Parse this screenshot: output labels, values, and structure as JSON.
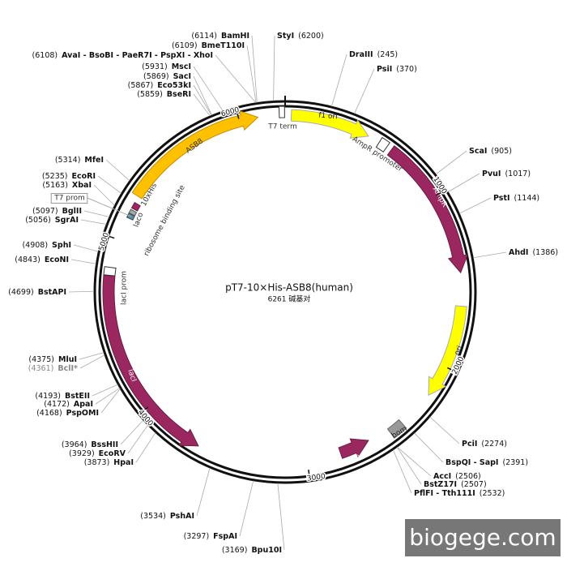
{
  "title": "pT7-10×His-ASB8(human)",
  "length_label": "6261 碱基对",
  "sites": [
    {
      "name": "BamHI",
      "pos": "(6114)"
    },
    {
      "name": "BmeT110I",
      "pos": "(6109)"
    },
    {
      "name": "AvaI - BsoBI - PaeR7I - PspXI - XhoI",
      "pos": "(6108)"
    },
    {
      "name": "MscI",
      "pos": "(5931)"
    },
    {
      "name": "SacI",
      "pos": "(5869)"
    },
    {
      "name": "Eco53kI",
      "pos": "(5867)"
    },
    {
      "name": "BseRI",
      "pos": "(5859)"
    },
    {
      "name": "MfeI",
      "pos": "(5314)"
    },
    {
      "name": "EcoRI",
      "pos": "(5235)"
    },
    {
      "name": "XbaI",
      "pos": "(5163)"
    },
    {
      "name": "BglII",
      "pos": "(5097)"
    },
    {
      "name": "SgrAI",
      "pos": "(5056)"
    },
    {
      "name": "SphI",
      "pos": "(4908)"
    },
    {
      "name": "EcoNI",
      "pos": "(4843)"
    },
    {
      "name": "BstAPI",
      "pos": "(4699)"
    },
    {
      "name": "MluI",
      "pos": "(4375)"
    },
    {
      "name": "BclI*",
      "pos": "(4361)"
    },
    {
      "name": "BstEII",
      "pos": "(4193)"
    },
    {
      "name": "ApaI",
      "pos": "(4172)"
    },
    {
      "name": "PspOMI",
      "pos": "(4168)"
    },
    {
      "name": "BssHII",
      "pos": "(3964)"
    },
    {
      "name": "EcoRV",
      "pos": "(3929)"
    },
    {
      "name": "HpaI",
      "pos": "(3873)"
    },
    {
      "name": "PshAI",
      "pos": "(3534)"
    },
    {
      "name": "FspAI",
      "pos": "(3297)"
    },
    {
      "name": "Bpu10I",
      "pos": "(3169)"
    },
    {
      "name": "StyI",
      "pos": "(6200)"
    },
    {
      "name": "DraIII",
      "pos": "(245)"
    },
    {
      "name": "PsiI",
      "pos": "(370)"
    },
    {
      "name": "ScaI",
      "pos": "(905)"
    },
    {
      "name": "PvuI",
      "pos": "(1017)"
    },
    {
      "name": "PstI",
      "pos": "(1144)"
    },
    {
      "name": "AhdI",
      "pos": "(1386)"
    },
    {
      "name": "PciI",
      "pos": "(2274)"
    },
    {
      "name": "BspQI - SapI",
      "pos": "(2391)"
    },
    {
      "name": "AccI",
      "pos": "(2506)"
    },
    {
      "name": "BstZ17I",
      "pos": "(2507)"
    },
    {
      "name": "PflFI - Tth111I",
      "pos": "(2532)"
    }
  ],
  "features": [
    {
      "label": "f1 ori"
    },
    {
      "label": "AmpR promoter"
    },
    {
      "label": "AmpR"
    },
    {
      "label": "ori"
    },
    {
      "label": "bom"
    },
    {
      "label": "rop"
    },
    {
      "label": "lacI"
    },
    {
      "label": "lacI prom"
    },
    {
      "label": "laco"
    },
    {
      "label": "ribosome binding site"
    },
    {
      "label": "10xHis"
    },
    {
      "label": "ASB8"
    },
    {
      "label": "T7 term"
    },
    {
      "label": "T7 prom"
    }
  ],
  "scale": [
    "1000",
    "2000",
    "3000",
    "4000",
    "5000",
    "6000"
  ],
  "watermark": "biogege.com"
}
